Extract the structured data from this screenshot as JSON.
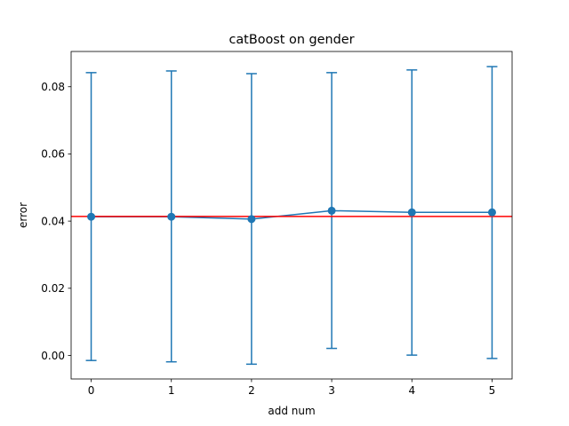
{
  "chart_data": {
    "type": "line",
    "title": "catBoost on gender",
    "xlabel": "add num",
    "ylabel": "error",
    "xlim": [
      -0.25,
      5.25
    ],
    "ylim": [
      -0.007,
      0.0905
    ],
    "xticks": [
      0,
      1,
      2,
      3,
      4,
      5
    ],
    "xtick_labels": [
      "0",
      "1",
      "2",
      "3",
      "4",
      "5"
    ],
    "yticks": [
      0.0,
      0.02,
      0.04,
      0.06,
      0.08
    ],
    "ytick_labels": [
      "0.00",
      "0.02",
      "0.04",
      "0.06",
      "0.08"
    ],
    "grid": false,
    "legend": "none",
    "series": [
      {
        "x": [
          0,
          1,
          2,
          3,
          4,
          5
        ],
        "y": [
          0.0413,
          0.0413,
          0.0406,
          0.0431,
          0.0426,
          0.0426
        ],
        "yerr_low": [
          -0.0015,
          -0.0019,
          -0.0026,
          0.0021,
          0.0001,
          -0.0009
        ],
        "yerr_high": [
          0.0842,
          0.0847,
          0.0839,
          0.0842,
          0.085,
          0.086
        ],
        "color": "#1f77b4",
        "marker": "circle",
        "errorbars": true
      }
    ],
    "hlines": [
      {
        "y": 0.0414,
        "color": "#ff0000"
      }
    ]
  }
}
